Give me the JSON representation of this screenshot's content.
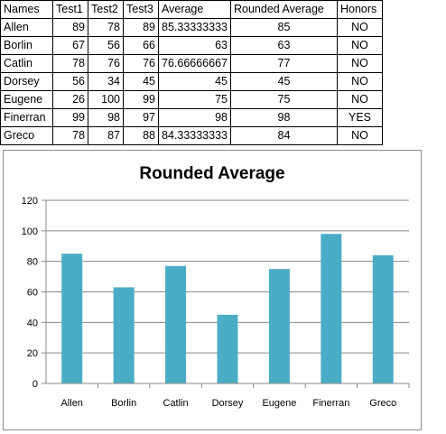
{
  "table": {
    "headers": [
      "Names",
      "Test1",
      "Test2",
      "Test3",
      "Average",
      "Rounded Average",
      "Honors"
    ],
    "rows": [
      [
        "Allen",
        "89",
        "78",
        "89",
        "85.33333333",
        "85",
        "NO"
      ],
      [
        "Borlin",
        "67",
        "56",
        "66",
        "63",
        "63",
        "NO"
      ],
      [
        "Catlin",
        "78",
        "76",
        "76",
        "76.66666667",
        "77",
        "NO"
      ],
      [
        "Dorsey",
        "56",
        "34",
        "45",
        "45",
        "45",
        "NO"
      ],
      [
        "Eugene",
        "26",
        "100",
        "99",
        "75",
        "75",
        "NO"
      ],
      [
        "Finerran",
        "99",
        "98",
        "97",
        "98",
        "98",
        "YES"
      ],
      [
        "Greco",
        "78",
        "87",
        "88",
        "84.33333333",
        "84",
        "NO"
      ]
    ]
  },
  "chart_data": {
    "type": "bar",
    "title": "Rounded Average",
    "categories": [
      "Allen",
      "Borlin",
      "Catlin",
      "Dorsey",
      "Eugene",
      "Finerran",
      "Greco"
    ],
    "values": [
      85,
      63,
      77,
      45,
      75,
      98,
      84
    ],
    "xlabel": "",
    "ylabel": "",
    "ylim": [
      0,
      120
    ],
    "yticks": [
      "0",
      "20",
      "40",
      "60",
      "80",
      "100",
      "120"
    ],
    "grid": true,
    "legend": "none",
    "bar_color": "#4bacc6"
  }
}
